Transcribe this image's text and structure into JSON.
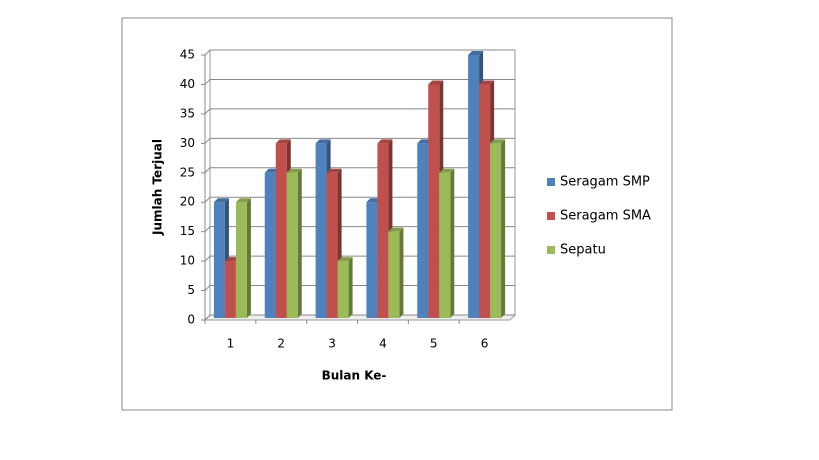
{
  "chart_data": {
    "type": "bar3d",
    "categories": [
      "1",
      "2",
      "3",
      "4",
      "5",
      "6"
    ],
    "series": [
      {
        "name": "Seragam SMP",
        "color": "#4f81bd",
        "values": [
          20,
          25,
          30,
          20,
          30,
          45
        ]
      },
      {
        "name": "Seragam SMA",
        "color": "#c0504d",
        "values": [
          10,
          30,
          25,
          30,
          40,
          40
        ]
      },
      {
        "name": "Sepatu",
        "color": "#9bbb59",
        "values": [
          20,
          25,
          10,
          15,
          25,
          30
        ]
      }
    ],
    "xlabel": "Bulan Ke-",
    "ylabel": "Jumlah Terjual",
    "ylim": [
      0,
      45
    ],
    "yticks": [
      0,
      5,
      10,
      15,
      20,
      25,
      30,
      35,
      40,
      45
    ],
    "grid": true,
    "legend": "right"
  }
}
